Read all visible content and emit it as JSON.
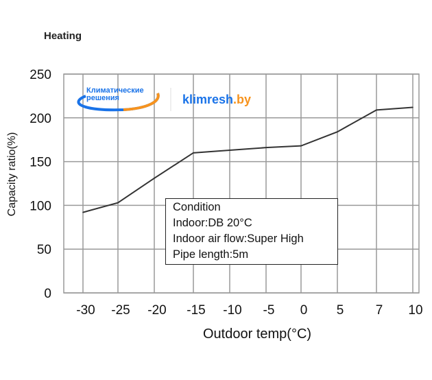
{
  "chart_data": {
    "type": "line",
    "title": "Heating",
    "xlabel": "Outdoor temp(°C)",
    "ylabel": "Capacity ratio(%)",
    "categories": [
      "-30",
      "-25",
      "-20",
      "-15",
      "-10",
      "-5",
      "0",
      "5",
      "7",
      "10"
    ],
    "series": [
      {
        "name": "Capacity ratio",
        "values": [
          92,
          103,
          131,
          160,
          163,
          166,
          168,
          184,
          209,
          212
        ]
      }
    ],
    "yticks": [
      "0",
      "50",
      "100",
      "150",
      "200",
      "250"
    ],
    "ylim": [
      0,
      250
    ],
    "grid": true,
    "annotation": [
      "Condition",
      "Indoor:DB 20°C",
      "Indoor air flow:Super High",
      "Pipe length:5m"
    ],
    "colors": {
      "line": "#333333",
      "grid": "#999999"
    }
  },
  "watermark": {
    "ru": "Климатические решения",
    "brand": "klimresh",
    "tld": ".by"
  }
}
